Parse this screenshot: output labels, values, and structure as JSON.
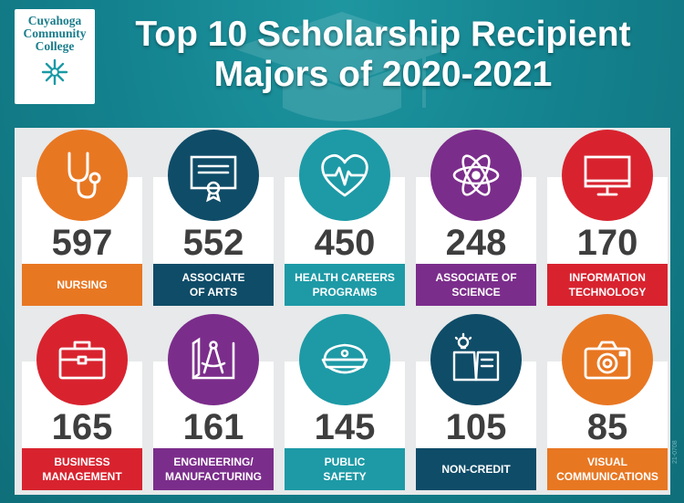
{
  "logo": {
    "line1": "Cuyahoga",
    "line2": "Community",
    "line3": "College",
    "icon": "snowflake-star-icon"
  },
  "title": {
    "line1": "Top 10 Scholarship Recipient",
    "line2": "Majors of 2020-2021"
  },
  "colors": {
    "background": "#148591",
    "panel": "#e7e9ea",
    "orange": "#e87722",
    "navy": "#0f4c68",
    "teal": "#1d9aa6",
    "purple": "#7b2d8b",
    "red": "#d8232f",
    "number": "#3e3e3e"
  },
  "majors": [
    {
      "count": "597",
      "label": "NURSING",
      "color": "#e87722",
      "icon": "stethoscope-icon"
    },
    {
      "count": "552",
      "label": "ASSOCIATE\nOF ARTS",
      "color": "#0f4c68",
      "icon": "diploma-certificate-icon"
    },
    {
      "count": "450",
      "label": "HEALTH CAREERS\nPROGRAMS",
      "color": "#1d9aa6",
      "icon": "heart-pulse-icon"
    },
    {
      "count": "248",
      "label": "ASSOCIATE OF\nSCIENCE",
      "color": "#7b2d8b",
      "icon": "atom-icon"
    },
    {
      "count": "170",
      "label": "INFORMATION\nTECHNOLOGY",
      "color": "#d8232f",
      "icon": "computer-monitor-icon"
    },
    {
      "count": "165",
      "label": "BUSINESS\nMANAGEMENT",
      "color": "#d8232f",
      "icon": "briefcase-icon"
    },
    {
      "count": "161",
      "label": "ENGINEERING/\nMANUFACTURING",
      "color": "#7b2d8b",
      "icon": "compass-drafting-icon"
    },
    {
      "count": "145",
      "label": "PUBLIC\nSAFETY",
      "color": "#1d9aa6",
      "icon": "police-cap-icon"
    },
    {
      "count": "105",
      "label": "NON-CREDIT",
      "color": "#0f4c68",
      "icon": "book-lightbulb-icon"
    },
    {
      "count": "85",
      "label": "VISUAL\nCOMMUNICATIONS",
      "color": "#e87722",
      "icon": "camera-icon"
    }
  ],
  "credit": "21-0708"
}
